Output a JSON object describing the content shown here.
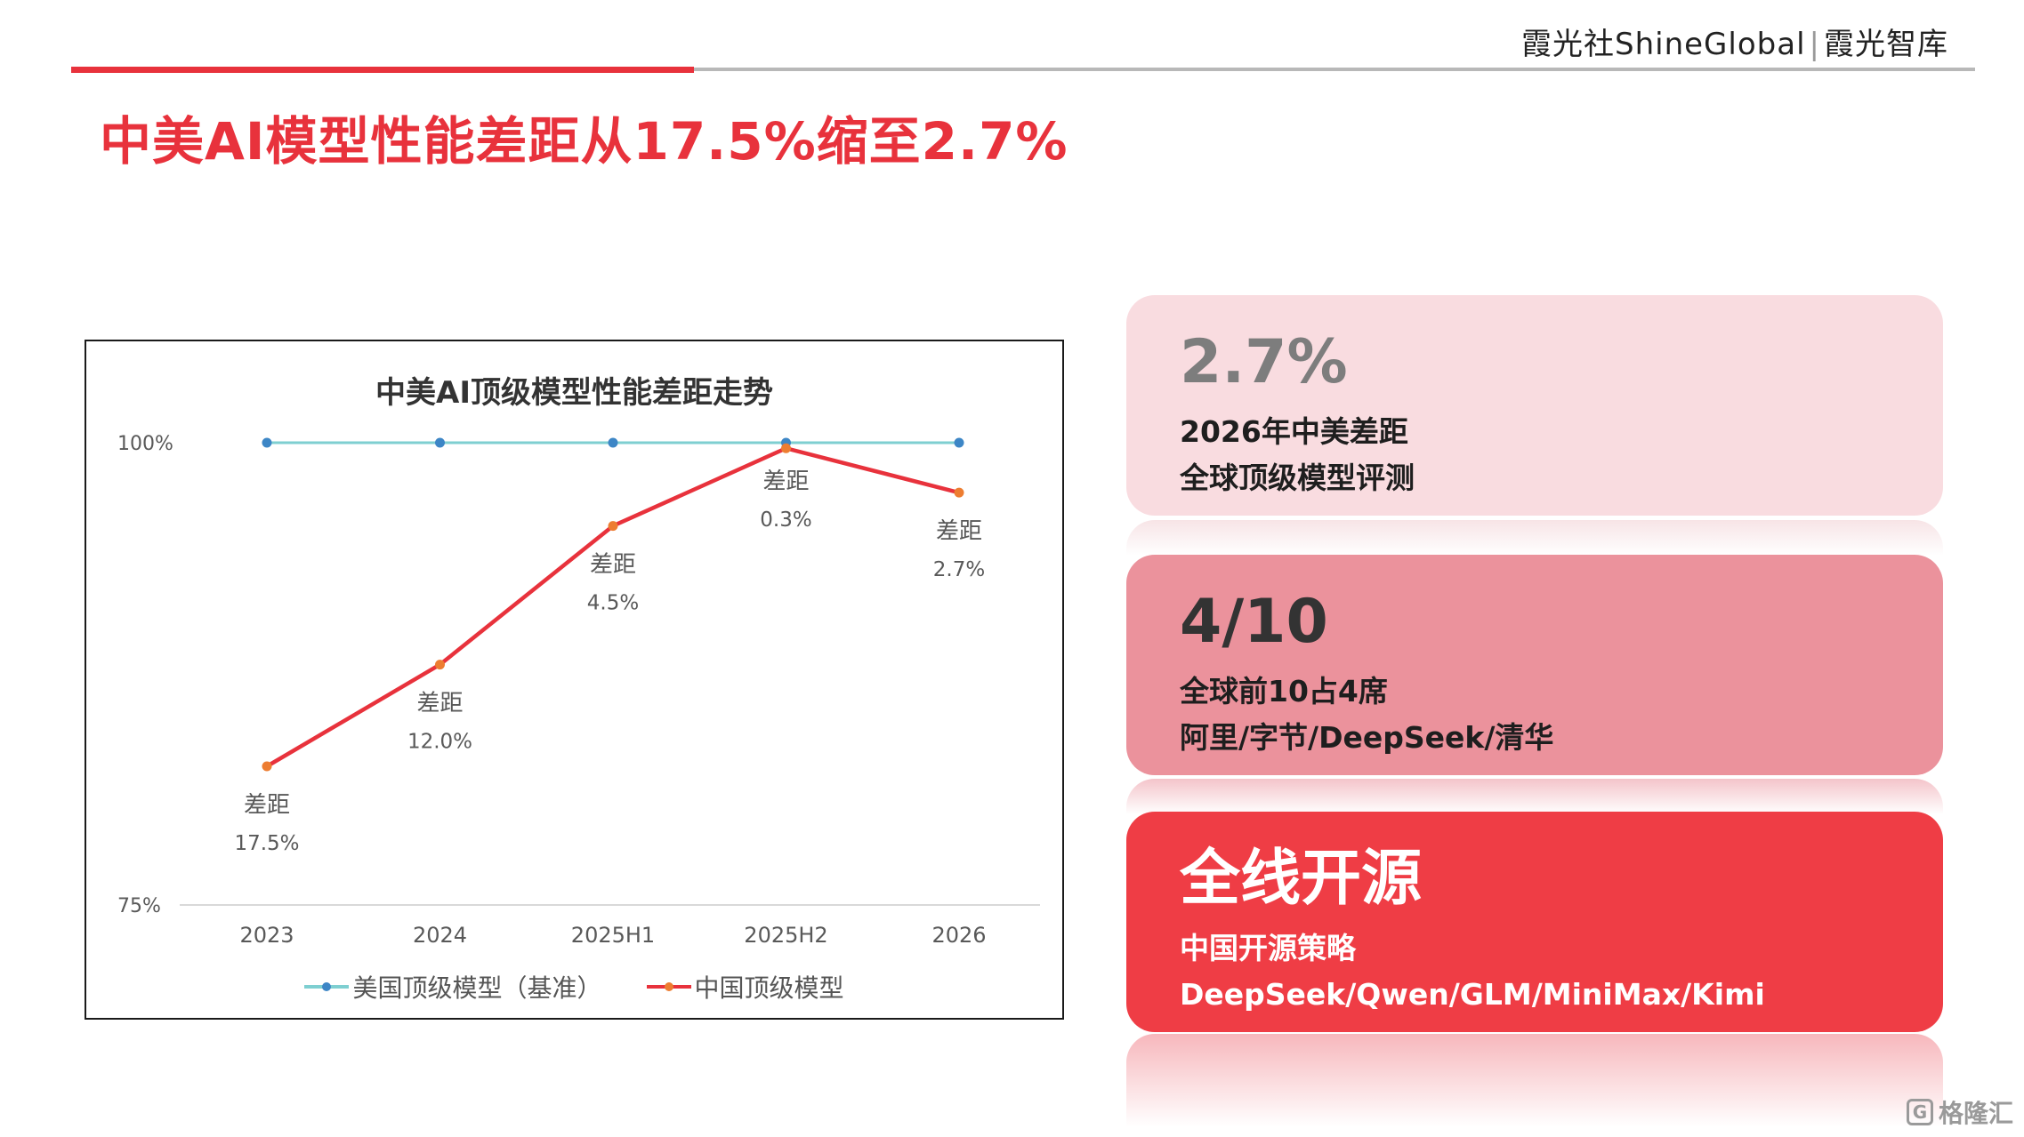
{
  "header": {
    "brand_left": "霞光社",
    "brand_english": "ShineGlobal",
    "brand_separator": "|",
    "brand_right": "霞光智库"
  },
  "page_title": "中美AI模型性能差距从17.5%缩至2.7%",
  "chart_data": {
    "type": "line",
    "title": "中美AI顶级模型性能差距走势",
    "categories": [
      "2023",
      "2024",
      "2025H1",
      "2025H2",
      "2026"
    ],
    "ylim": [
      75,
      100
    ],
    "yticks": [
      "75%",
      "100%"
    ],
    "series": [
      {
        "name": "美国顶级模型（基准）",
        "color": "#7ecfd1",
        "marker_color": "#3d86c6",
        "values": [
          100,
          100,
          100,
          100,
          100
        ]
      },
      {
        "name": "中国顶级模型",
        "color": "#e8323c",
        "marker_color": "#ed7d31",
        "values": [
          82.5,
          88.0,
          95.5,
          99.7,
          97.3
        ]
      }
    ],
    "annotations": [
      {
        "label": "差距",
        "value": "17.5%"
      },
      {
        "label": "差距",
        "value": "12.0%"
      },
      {
        "label": "差距",
        "value": "4.5%"
      },
      {
        "label": "差距",
        "value": "0.3%"
      },
      {
        "label": "差距",
        "value": "2.7%"
      }
    ],
    "grid": false,
    "legend_position": "bottom"
  },
  "cards": [
    {
      "big": "2.7%",
      "line1": "2026年中美差距",
      "line2": "全球顶级模型评测"
    },
    {
      "big": "4/10",
      "line1": "全球前10占4席",
      "line2": "阿里/字节/DeepSeek/清华"
    },
    {
      "big": "全线开源",
      "line1": "中国开源策略",
      "line2": "DeepSeek/Qwen/GLM/MiniMax/Kimi"
    }
  ],
  "watermark": {
    "icon": "G",
    "text": "格隆汇"
  },
  "colors": {
    "accent": "#e8323c",
    "card1": "#f9dce0",
    "card2": "#eb929c",
    "card3": "#ef3d45"
  }
}
